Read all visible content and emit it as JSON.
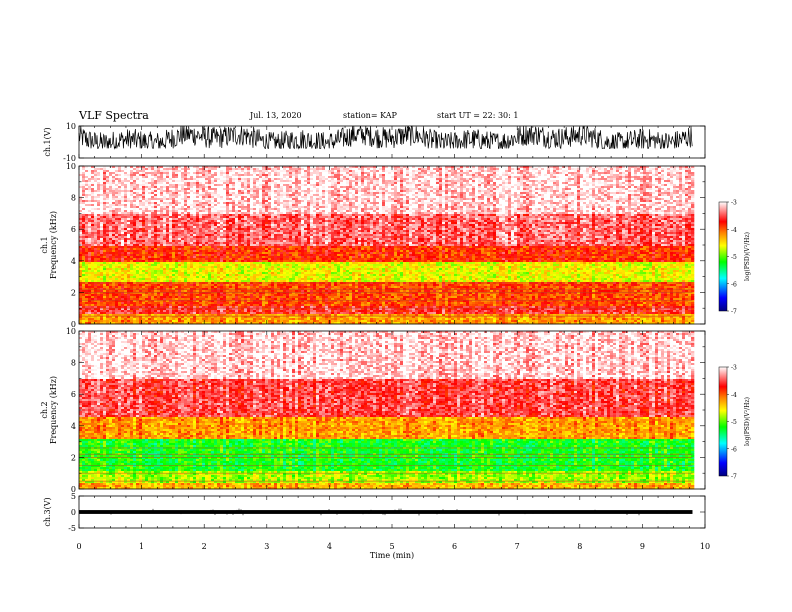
{
  "header": {
    "title": "VLF Spectra",
    "date": "Jul. 13, 2020",
    "station": "station= KAP",
    "start_time": "start UT =  22: 30: 1"
  },
  "colors": {
    "waveform": "#000000",
    "colormap": [
      "#000080",
      "#0000ff",
      "#00ffff",
      "#00ff00",
      "#ffff00",
      "#ff8000",
      "#ff0000",
      "#ffffff"
    ]
  },
  "chart_data": [
    {
      "type": "line",
      "panel": "ch1-waveform",
      "ylabel": "ch.1(V)",
      "ylim": [
        -10,
        10
      ],
      "yticks": [
        "10",
        "-10"
      ],
      "xlim": [
        0,
        10
      ],
      "data_extent_min": 9.8,
      "amplitude_range_V": [
        -4,
        10
      ]
    },
    {
      "type": "heatmap",
      "panel": "ch1-spectrogram",
      "ylabel": "ch.1\nFrequency (kHz)",
      "ylim": [
        0,
        10
      ],
      "yticks": [
        "0",
        "2",
        "4",
        "6",
        "8",
        "10"
      ],
      "xlim": [
        0,
        10
      ],
      "data_extent_min": 9.8,
      "colorbar": {
        "label": "log(PSD)(V²/Hz)",
        "range": [
          -7,
          -3
        ],
        "ticks": [
          "-3",
          "-4",
          "-5",
          "-6",
          "-7"
        ]
      },
      "bands_kHz": [
        {
          "from": 0,
          "to": 0.6,
          "logPSD": -4.2
        },
        {
          "from": 0.6,
          "to": 1.2,
          "logPSD": -3.6
        },
        {
          "from": 1.2,
          "to": 2.6,
          "logPSD": -3.9
        },
        {
          "from": 2.6,
          "to": 3.9,
          "logPSD": -4.6
        },
        {
          "from": 3.9,
          "to": 5.0,
          "logPSD": -3.8
        },
        {
          "from": 5.0,
          "to": 7.0,
          "logPSD": -3.4
        },
        {
          "from": 7.0,
          "to": 10.0,
          "logPSD": -3.1
        }
      ]
    },
    {
      "type": "heatmap",
      "panel": "ch2-spectrogram",
      "ylabel": "ch.2\nFrequency (kHz)",
      "ylim": [
        0,
        10
      ],
      "yticks": [
        "0",
        "2",
        "4",
        "6",
        "8",
        "10"
      ],
      "xlim": [
        0,
        10
      ],
      "data_extent_min": 9.8,
      "colorbar": {
        "label": "log(PSD)(V²/Hz)",
        "range": [
          -7,
          -3
        ],
        "ticks": [
          "-3",
          "-4",
          "-5",
          "-6",
          "-7"
        ]
      },
      "bands_kHz": [
        {
          "from": 0,
          "to": 0.4,
          "logPSD": -4.3
        },
        {
          "from": 0.4,
          "to": 1.2,
          "logPSD": -4.8
        },
        {
          "from": 1.2,
          "to": 3.2,
          "logPSD": -5.2
        },
        {
          "from": 3.2,
          "to": 4.5,
          "logPSD": -4.2
        },
        {
          "from": 4.5,
          "to": 7.0,
          "logPSD": -3.5
        },
        {
          "from": 7.0,
          "to": 10.0,
          "logPSD": -3.1
        }
      ]
    },
    {
      "type": "line",
      "panel": "ch3-waveform",
      "ylabel": "ch.3(V)",
      "ylim": [
        -5,
        5
      ],
      "yticks": [
        "5",
        "0",
        "-5"
      ],
      "xlim": [
        0,
        10
      ],
      "xlabel": "Time (min)",
      "xticks": [
        "0",
        "1",
        "2",
        "3",
        "4",
        "5",
        "6",
        "7",
        "8",
        "9",
        "10"
      ],
      "data_extent_min": 9.8,
      "amplitude_range_V": [
        -0.6,
        0.6
      ]
    }
  ]
}
